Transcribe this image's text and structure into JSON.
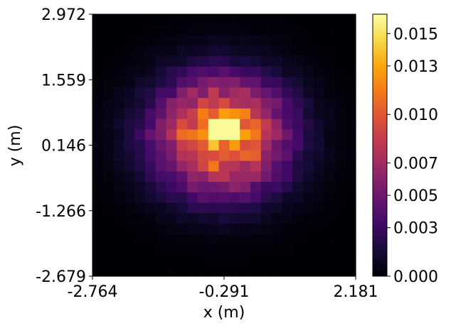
{
  "chart_data": {
    "type": "heatmap",
    "xlabel": "x (m)",
    "ylabel": "y (m)",
    "xlim": [
      -2.764,
      2.181
    ],
    "ylim": [
      -2.679,
      2.972
    ],
    "xticks": [
      "-2.764",
      "-0.291",
      "2.181"
    ],
    "yticks": [
      "2.972",
      "1.559",
      "0.146",
      "-1.266",
      "-2.679"
    ],
    "colormap": "inferno",
    "colorbar_range": [
      0.0,
      0.0162
    ],
    "colorbar_ticks": [
      "0.015",
      "0.013",
      "0.010",
      "0.007",
      "0.005",
      "0.003",
      "0.000"
    ],
    "grid_shape": [
      25,
      25
    ],
    "peak": {
      "x": -0.291,
      "y": 0.5,
      "value": 0.016
    },
    "description_values": {
      "center_x": -0.35,
      "center_y": 0.35,
      "spread_x": 0.85,
      "spread_y": 0.85,
      "max_value": 0.016
    }
  }
}
